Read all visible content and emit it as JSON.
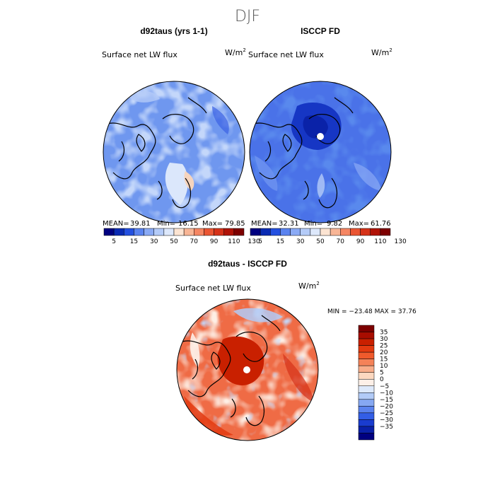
{
  "page_title": "DJF",
  "chart_data": [
    {
      "type": "heatmap",
      "title": "d92taus (yrs 1-1)",
      "subtitle": "Surface net LW flux",
      "units": "W/m",
      "units_exp": "2",
      "stats": {
        "mean_label": "MEAN=",
        "mean": "39.81",
        "min_label": "Min=",
        "min": "16.15",
        "max_label": "Max=",
        "max": "79.85"
      },
      "colorbar": {
        "levels": [
          "5",
          "15",
          "30",
          "50",
          "70",
          "90",
          "110",
          "130"
        ],
        "colors": [
          "#000080",
          "#0a2bb3",
          "#2450e0",
          "#5a83f0",
          "#8aaaf5",
          "#b4cbf8",
          "#dde8fb",
          "#fce4d2",
          "#f8b595",
          "#f58663",
          "#ea5533",
          "#d53219",
          "#b01307",
          "#7d0000"
        ]
      }
    },
    {
      "type": "heatmap",
      "title": "ISCCP FD",
      "subtitle": "Surface net LW flux",
      "units": "W/m",
      "units_exp": "2",
      "stats": {
        "mean_label": "MEAN=",
        "mean": "32.31",
        "min_label": "Min=",
        "min": "9.82",
        "max_label": "Max=",
        "max": "61.76"
      },
      "colorbar": {
        "levels": [
          "5",
          "15",
          "30",
          "50",
          "70",
          "90",
          "110",
          "130"
        ],
        "colors": [
          "#000080",
          "#0a2bb3",
          "#2450e0",
          "#5a83f0",
          "#8aaaf5",
          "#b4cbf8",
          "#dde8fb",
          "#fce4d2",
          "#f8b595",
          "#f58663",
          "#ea5533",
          "#d53219",
          "#b01307",
          "#7d0000"
        ]
      }
    },
    {
      "type": "heatmap",
      "title": "d92taus - ISCCP FD",
      "subtitle": "Surface net LW flux",
      "units": "W/m",
      "units_exp": "2",
      "minmax": "MIN = −23.48 MAX =  37.76",
      "colorbar": {
        "levels": [
          "35",
          "30",
          "25",
          "20",
          "15",
          "10",
          "5",
          "0",
          "−5",
          "−10",
          "−15",
          "−20",
          "−25",
          "−30",
          "−35"
        ],
        "colors": [
          "#7d0000",
          "#a80d00",
          "#c92000",
          "#e33a10",
          "#f05a2c",
          "#f48258",
          "#f8ad8a",
          "#fcd8c0",
          "#fdf0e8",
          "#dde9fb",
          "#b2cbf7",
          "#86a8f2",
          "#5b83ee",
          "#335ee6",
          "#1a3ccf",
          "#0a20a8",
          "#000080"
        ]
      }
    }
  ]
}
